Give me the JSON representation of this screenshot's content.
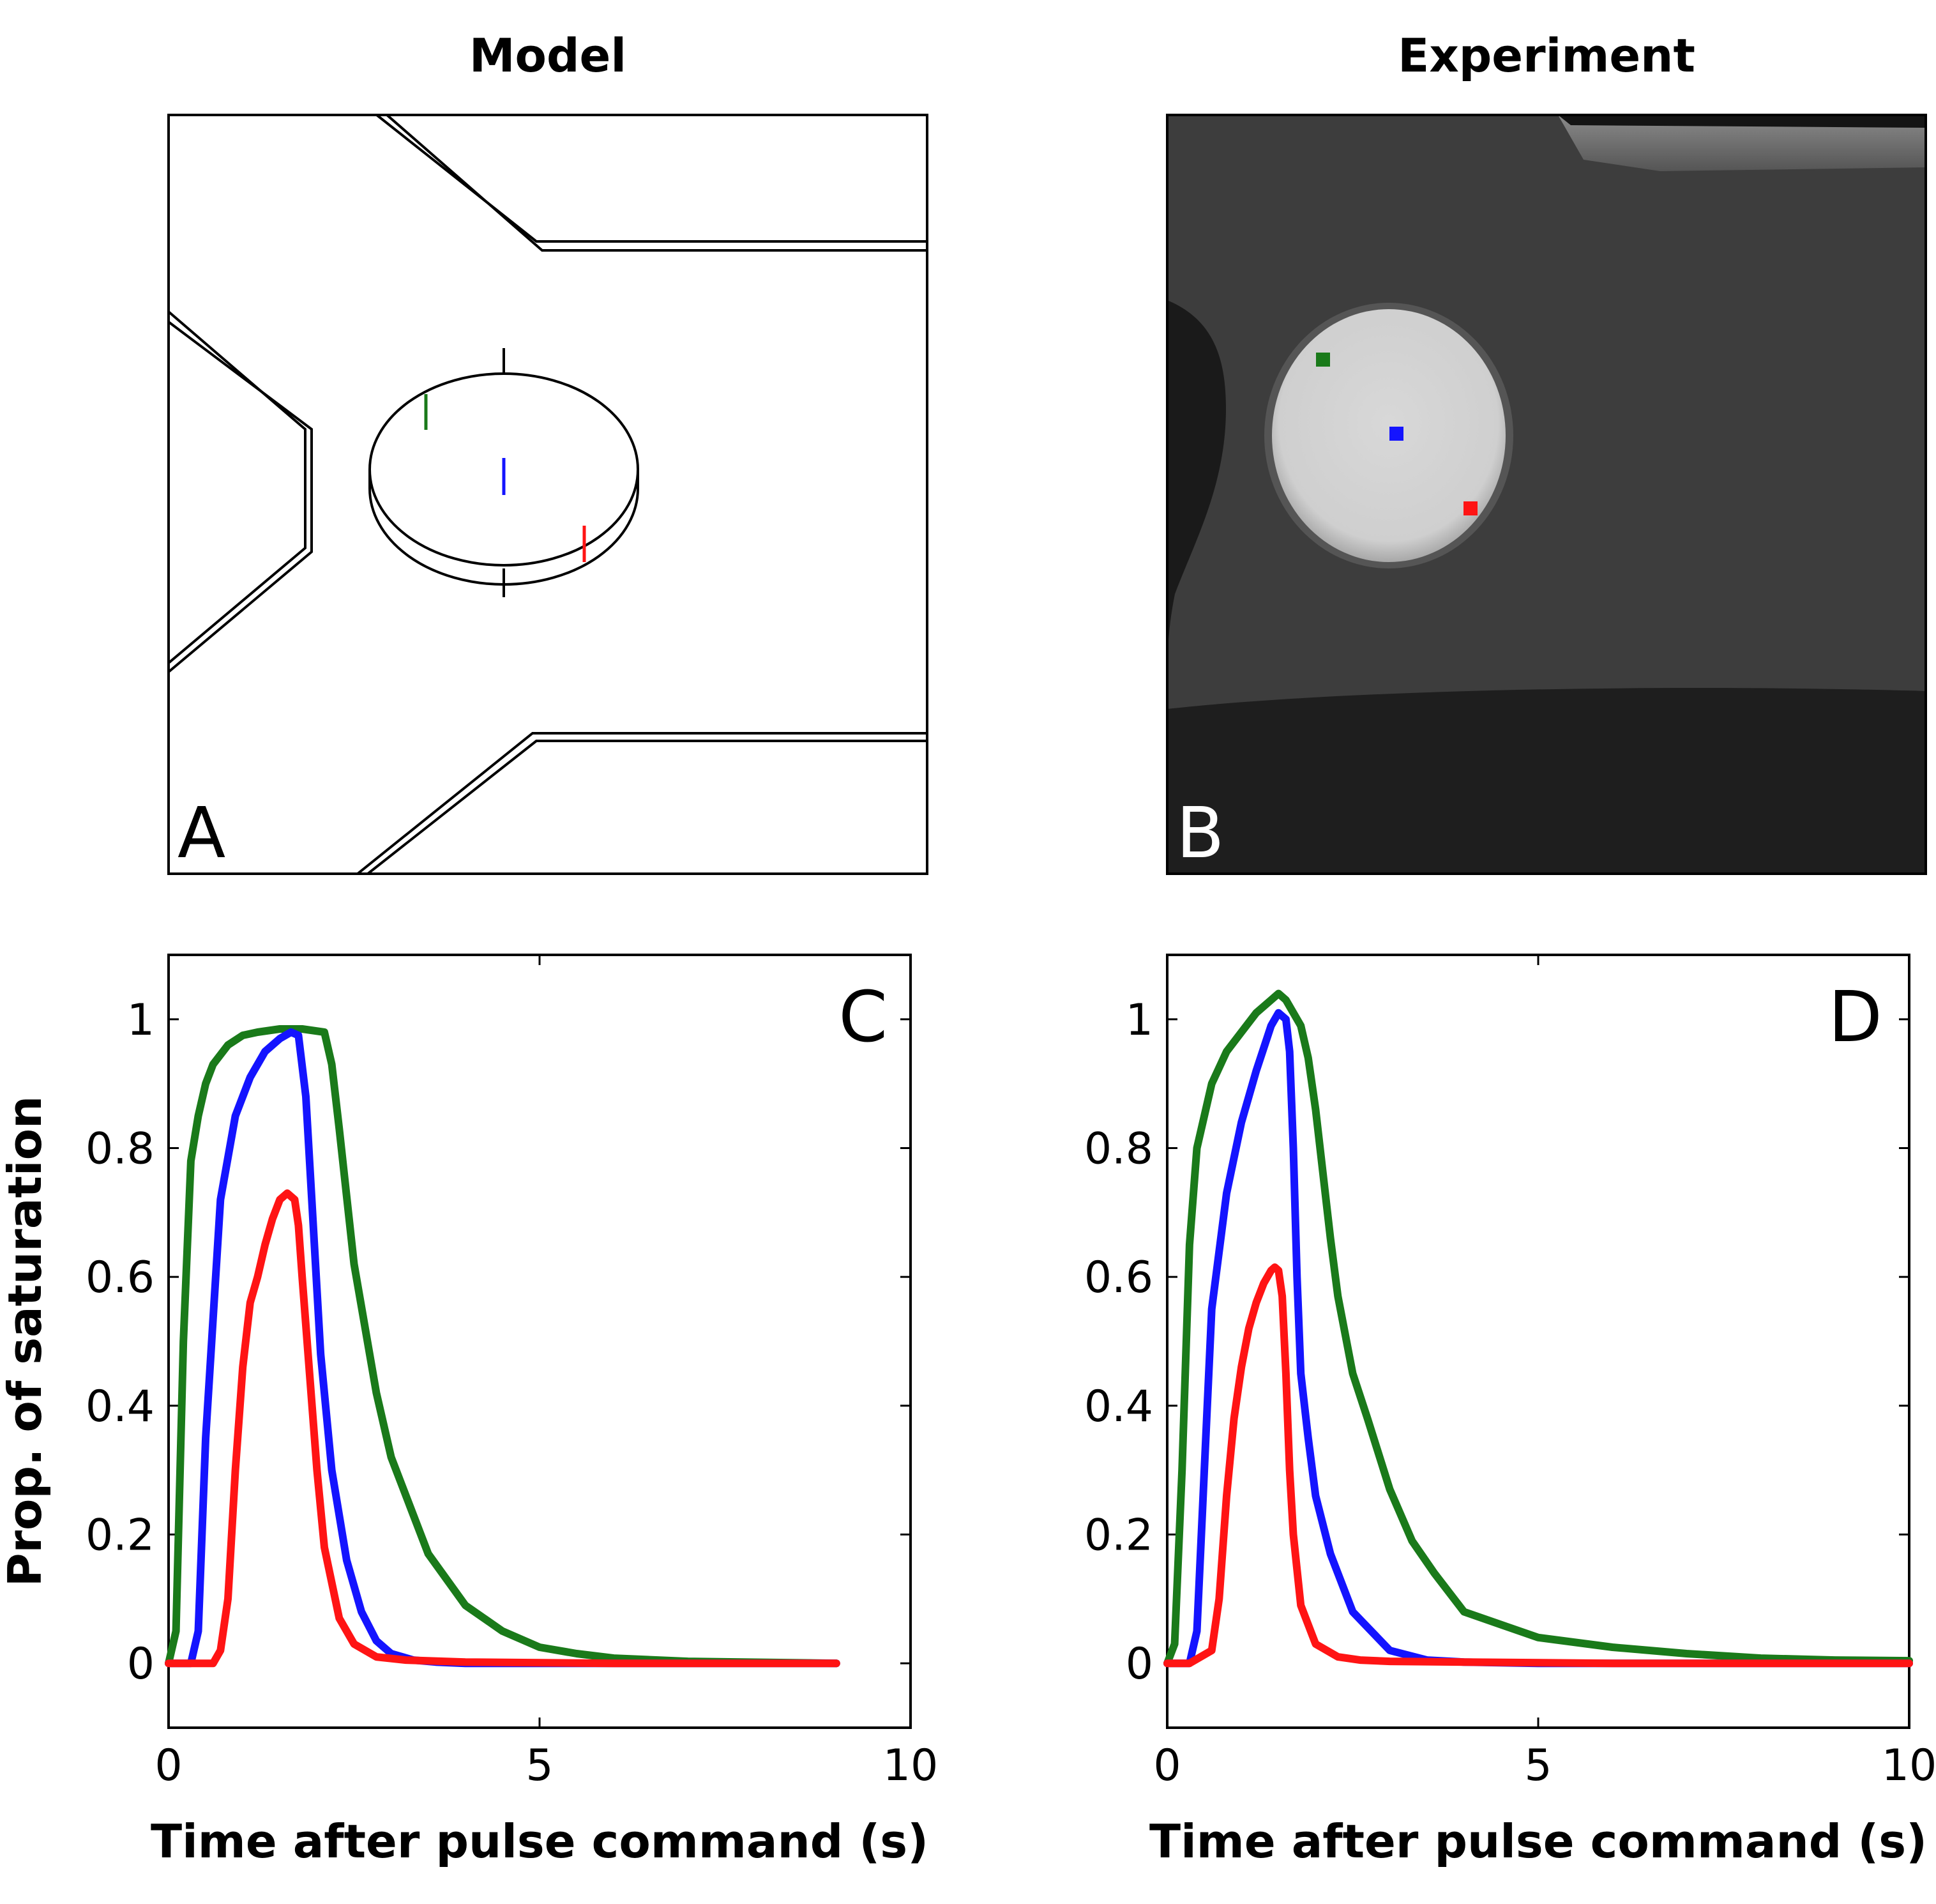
{
  "titles": {
    "model": "Model",
    "experiment": "Experiment"
  },
  "panel_letters": {
    "a": "A",
    "b": "B",
    "c": "C",
    "d": "D"
  },
  "colors": {
    "green": "#1a7a1a",
    "blue": "#1414ff",
    "red": "#ff1414",
    "axis": "#000000",
    "photo_bg": "#3c3c3c",
    "photo_dark": "#1c1c1c",
    "photo_well": "#d6d6d6"
  },
  "chart_data": [
    {
      "panel": "C",
      "type": "line",
      "title": "",
      "xlabel": "Time after pulse command (s)",
      "ylabel": "Prop. of saturation",
      "xlim": [
        0,
        10
      ],
      "ylim": [
        -0.1,
        1.1
      ],
      "xticks": [
        0,
        5,
        10
      ],
      "xtick_labels": [
        "0",
        "5",
        "10"
      ],
      "yticks": [
        0,
        0.2,
        0.4,
        0.6,
        0.8,
        1
      ],
      "ytick_labels": [
        "0",
        "0.2",
        "0.4",
        "0.6",
        "0.8",
        "1"
      ],
      "grid": false,
      "series": [
        {
          "color": "green",
          "x": [
            0,
            0.1,
            0.2,
            0.3,
            0.4,
            0.5,
            0.6,
            0.8,
            1.0,
            1.2,
            1.5,
            1.7,
            1.8,
            2.1,
            2.2,
            2.3,
            2.5,
            2.8,
            3.0,
            3.5,
            4.0,
            4.5,
            5.0,
            5.5,
            6.0,
            7.0,
            9.0
          ],
          "y": [
            0,
            0.05,
            0.5,
            0.78,
            0.85,
            0.9,
            0.93,
            0.96,
            0.975,
            0.98,
            0.985,
            0.985,
            0.985,
            0.98,
            0.93,
            0.83,
            0.62,
            0.42,
            0.32,
            0.17,
            0.09,
            0.05,
            0.025,
            0.015,
            0.008,
            0.003,
            0
          ]
        },
        {
          "color": "blue",
          "x": [
            0,
            0.3,
            0.4,
            0.5,
            0.7,
            0.9,
            1.1,
            1.3,
            1.5,
            1.65,
            1.75,
            1.85,
            1.95,
            2.05,
            2.2,
            2.4,
            2.6,
            2.8,
            3.0,
            3.3,
            3.6,
            4.0,
            5.0,
            9.0
          ],
          "y": [
            0,
            0,
            0.05,
            0.35,
            0.72,
            0.85,
            0.91,
            0.95,
            0.97,
            0.98,
            0.975,
            0.88,
            0.68,
            0.48,
            0.3,
            0.16,
            0.08,
            0.035,
            0.015,
            0.005,
            0.002,
            0,
            0,
            0
          ]
        },
        {
          "color": "red",
          "x": [
            0,
            0.6,
            0.7,
            0.8,
            0.9,
            1.0,
            1.1,
            1.2,
            1.3,
            1.4,
            1.5,
            1.6,
            1.7,
            1.75,
            1.8,
            1.9,
            2.0,
            2.1,
            2.3,
            2.5,
            2.8,
            3.2,
            4.0,
            6.0,
            9.0
          ],
          "y": [
            0,
            0,
            0.02,
            0.1,
            0.3,
            0.46,
            0.56,
            0.6,
            0.65,
            0.69,
            0.72,
            0.73,
            0.72,
            0.68,
            0.6,
            0.45,
            0.3,
            0.18,
            0.07,
            0.03,
            0.01,
            0.005,
            0.002,
            0,
            0
          ]
        }
      ]
    },
    {
      "panel": "D",
      "type": "line",
      "title": "",
      "xlabel": "Time after pulse command (s)",
      "ylabel": "",
      "xlim": [
        0,
        10
      ],
      "ylim": [
        -0.1,
        1.1
      ],
      "xticks": [
        0,
        5,
        10
      ],
      "xtick_labels": [
        "0",
        "5",
        "10"
      ],
      "yticks": [
        0,
        0.2,
        0.4,
        0.6,
        0.8,
        1
      ],
      "ytick_labels": [
        "0",
        "0.2",
        "0.4",
        "0.6",
        "0.8",
        "1"
      ],
      "grid": false,
      "series": [
        {
          "color": "green",
          "x": [
            0,
            0.1,
            0.2,
            0.3,
            0.4,
            0.6,
            0.8,
            1.0,
            1.2,
            1.4,
            1.5,
            1.6,
            1.8,
            1.9,
            2.0,
            2.1,
            2.2,
            2.3,
            2.5,
            2.7,
            3.0,
            3.3,
            3.6,
            4.0,
            4.5,
            5.0,
            6.0,
            7.0,
            8.0,
            9.0,
            10.0
          ],
          "y": [
            0,
            0.03,
            0.3,
            0.65,
            0.8,
            0.9,
            0.95,
            0.98,
            1.01,
            1.03,
            1.04,
            1.03,
            0.99,
            0.94,
            0.86,
            0.76,
            0.66,
            0.57,
            0.45,
            0.38,
            0.27,
            0.19,
            0.14,
            0.08,
            0.06,
            0.04,
            0.025,
            0.015,
            0.008,
            0.005,
            0.004
          ]
        },
        {
          "color": "blue",
          "x": [
            0,
            0.3,
            0.4,
            0.5,
            0.6,
            0.8,
            1.0,
            1.2,
            1.4,
            1.5,
            1.6,
            1.65,
            1.7,
            1.75,
            1.8,
            1.9,
            2.0,
            2.2,
            2.5,
            3.0,
            3.5,
            4.0,
            5.0,
            10.0
          ],
          "y": [
            0,
            0,
            0.05,
            0.3,
            0.55,
            0.73,
            0.84,
            0.92,
            0.99,
            1.01,
            1.0,
            0.95,
            0.8,
            0.6,
            0.45,
            0.35,
            0.26,
            0.17,
            0.08,
            0.02,
            0.005,
            0.002,
            0,
            0
          ]
        },
        {
          "color": "red",
          "x": [
            0,
            0.3,
            0.6,
            0.7,
            0.8,
            0.9,
            1.0,
            1.1,
            1.2,
            1.3,
            1.4,
            1.45,
            1.5,
            1.55,
            1.6,
            1.65,
            1.7,
            1.8,
            2.0,
            2.3,
            2.6,
            3.0,
            4.0,
            6.0,
            10.0
          ],
          "y": [
            0,
            0,
            0.02,
            0.1,
            0.26,
            0.38,
            0.46,
            0.52,
            0.56,
            0.59,
            0.61,
            0.615,
            0.61,
            0.57,
            0.45,
            0.3,
            0.2,
            0.09,
            0.03,
            0.01,
            0.005,
            0.003,
            0.002,
            0,
            0
          ]
        }
      ]
    }
  ]
}
